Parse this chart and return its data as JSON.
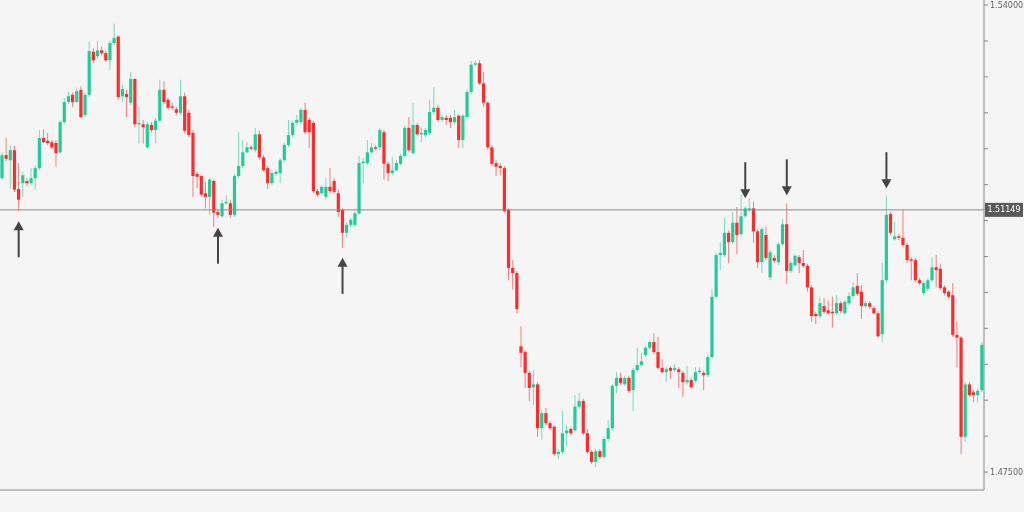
{
  "chart_data": {
    "type": "candlestick",
    "categories": [
      null,
      null,
      null,
      null,
      null,
      null,
      null,
      null,
      null,
      null,
      null,
      null,
      null,
      null,
      null,
      null,
      null,
      null,
      null,
      null,
      null,
      null,
      null,
      null,
      null,
      null,
      null,
      null,
      null,
      null,
      null,
      null,
      null,
      null,
      null,
      null,
      null,
      null,
      null,
      null,
      null,
      null,
      null,
      null,
      null,
      null,
      null,
      null,
      null,
      null,
      null,
      null,
      null,
      null,
      null,
      null,
      null,
      null,
      null,
      null,
      null,
      null,
      null,
      null,
      null,
      null,
      null,
      null,
      null,
      null,
      null,
      null,
      null,
      null,
      null,
      null,
      null,
      null,
      null,
      null,
      null,
      null,
      null,
      null,
      null,
      null,
      null,
      null,
      null,
      null,
      null,
      null,
      null,
      null,
      null,
      null,
      null,
      null,
      null,
      null,
      null,
      null,
      null,
      null,
      null,
      null,
      null,
      null,
      null,
      null,
      null,
      null,
      null,
      null,
      null,
      null,
      null,
      null,
      null,
      null,
      null,
      null,
      null,
      null,
      null,
      null,
      null,
      null,
      null,
      null,
      null,
      null,
      null,
      null,
      null,
      null,
      null,
      null,
      null,
      null,
      null,
      null,
      null,
      null,
      null,
      null,
      null,
      null,
      null,
      null,
      null,
      null,
      null,
      null,
      null,
      null,
      null,
      null,
      null,
      null,
      null,
      null,
      null,
      null,
      null,
      null,
      null,
      null,
      null,
      null,
      null,
      null,
      null,
      null,
      null,
      null,
      null,
      null,
      null,
      null,
      null,
      null,
      null,
      null,
      null,
      null,
      null,
      null,
      null,
      null,
      null,
      null,
      null,
      null,
      null,
      null,
      null,
      null,
      null,
      null,
      null,
      null,
      null,
      null,
      null,
      null,
      null,
      null,
      null,
      null,
      null,
      null,
      null,
      null,
      null,
      null,
      null,
      null,
      null,
      null,
      null,
      null,
      null,
      null,
      null,
      null,
      null,
      null,
      null,
      null,
      null,
      null,
      null,
      null,
      null,
      null,
      null
    ],
    "ohlc": [
      [
        1.5159,
        1.5195,
        1.5157,
        1.5191
      ],
      [
        1.5191,
        1.5215,
        1.5183,
        1.5186
      ],
      [
        1.5184,
        1.5205,
        1.5145,
        1.5198
      ],
      [
        1.5198,
        1.5204,
        1.514,
        1.5143
      ],
      [
        1.5144,
        1.518,
        1.5113,
        1.5129
      ],
      [
        1.5152,
        1.5168,
        1.5133,
        1.5163
      ],
      [
        1.5155,
        1.5159,
        1.5148,
        1.5152
      ],
      [
        1.5152,
        1.5173,
        1.5149,
        1.5159
      ],
      [
        1.5159,
        1.5177,
        1.5143,
        1.5173
      ],
      [
        1.5173,
        1.5226,
        1.517,
        1.5215
      ],
      [
        1.5215,
        1.5227,
        1.5208,
        1.5209
      ],
      [
        1.5211,
        1.5222,
        1.5205,
        1.5208
      ],
      [
        1.5209,
        1.5212,
        1.52,
        1.5202
      ],
      [
        1.5208,
        1.5212,
        1.5175,
        1.5194
      ],
      [
        1.5195,
        1.524,
        1.5193,
        1.5237
      ],
      [
        1.5237,
        1.5271,
        1.5234,
        1.5265
      ],
      [
        1.5265,
        1.5279,
        1.5262,
        1.5273
      ],
      [
        1.5275,
        1.5278,
        1.5258,
        1.5265
      ],
      [
        1.5265,
        1.5285,
        1.5264,
        1.528
      ],
      [
        1.5282,
        1.5287,
        1.5243,
        1.5244
      ],
      [
        1.5247,
        1.5278,
        1.5244,
        1.5275
      ],
      [
        1.5275,
        1.5349,
        1.5272,
        1.5336
      ],
      [
        1.5335,
        1.534,
        1.5319,
        1.5323
      ],
      [
        1.5329,
        1.535,
        1.5326,
        1.5337
      ],
      [
        1.5337,
        1.5342,
        1.533,
        1.5333
      ],
      [
        1.5333,
        1.5337,
        1.5321,
        1.5323
      ],
      [
        1.5323,
        1.5351,
        1.531,
        1.5347
      ],
      [
        1.5347,
        1.5374,
        1.5344,
        1.5354
      ],
      [
        1.5356,
        1.5358,
        1.5268,
        1.5272
      ],
      [
        1.5273,
        1.5289,
        1.5265,
        1.5283
      ],
      [
        1.5276,
        1.5282,
        1.5244,
        1.5272
      ],
      [
        1.5264,
        1.5307,
        1.5261,
        1.5297
      ],
      [
        1.5297,
        1.5298,
        1.523,
        1.5234
      ],
      [
        1.5234,
        1.5258,
        1.5207,
        1.5236
      ],
      [
        1.5234,
        1.524,
        1.5207,
        1.523
      ],
      [
        1.5202,
        1.5237,
        1.52,
        1.5234
      ],
      [
        1.5233,
        1.5237,
        1.5223,
        1.5226
      ],
      [
        1.5226,
        1.5243,
        1.5208,
        1.5239
      ],
      [
        1.5239,
        1.5296,
        1.5237,
        1.5282
      ],
      [
        1.5282,
        1.5294,
        1.5262,
        1.5265
      ],
      [
        1.5268,
        1.5271,
        1.5254,
        1.5257
      ],
      [
        1.5259,
        1.5264,
        1.5254,
        1.5257
      ],
      [
        1.5255,
        1.5258,
        1.5247,
        1.525
      ],
      [
        1.525,
        1.5296,
        1.5247,
        1.5273
      ],
      [
        1.5273,
        1.5278,
        1.5222,
        1.5225
      ],
      [
        1.525,
        1.5254,
        1.5216,
        1.5219
      ],
      [
        1.5222,
        1.5226,
        1.5133,
        1.5162
      ],
      [
        1.5165,
        1.5168,
        1.5145,
        1.5161
      ],
      [
        1.5162,
        1.5163,
        1.5133,
        1.5136
      ],
      [
        1.5138,
        1.5154,
        1.5117,
        1.5133
      ],
      [
        1.5133,
        1.5159,
        1.5108,
        1.5157
      ],
      [
        1.5155,
        1.5157,
        1.5091,
        1.5111
      ],
      [
        1.5112,
        1.5115,
        1.5104,
        1.5108
      ],
      [
        1.5106,
        1.5129,
        1.5104,
        1.5124
      ],
      [
        1.5124,
        1.5136,
        1.5122,
        1.5126
      ],
      [
        1.5124,
        1.5129,
        1.5104,
        1.5108
      ],
      [
        1.5108,
        1.5165,
        1.5105,
        1.5162
      ],
      [
        1.5162,
        1.5223,
        1.5159,
        1.5176
      ],
      [
        1.5176,
        1.5212,
        1.5173,
        1.5195
      ],
      [
        1.5195,
        1.5209,
        1.5193,
        1.5202
      ],
      [
        1.5202,
        1.5205,
        1.5198,
        1.52
      ],
      [
        1.5198,
        1.5229,
        1.5195,
        1.522
      ],
      [
        1.522,
        1.5225,
        1.5184,
        1.5188
      ],
      [
        1.5188,
        1.5191,
        1.5168,
        1.517
      ],
      [
        1.5173,
        1.5176,
        1.5144,
        1.5152
      ],
      [
        1.5152,
        1.517,
        1.5149,
        1.5166
      ],
      [
        1.5165,
        1.517,
        1.5162,
        1.5168
      ],
      [
        1.5166,
        1.5187,
        1.5152,
        1.5184
      ],
      [
        1.5184,
        1.5208,
        1.5181,
        1.5205
      ],
      [
        1.5205,
        1.524,
        1.5202,
        1.5219
      ],
      [
        1.5219,
        1.5239,
        1.5216,
        1.5236
      ],
      [
        1.5236,
        1.5247,
        1.5233,
        1.524
      ],
      [
        1.5237,
        1.5257,
        1.5234,
        1.5254
      ],
      [
        1.5254,
        1.5264,
        1.522,
        1.5223
      ],
      [
        1.524,
        1.5243,
        1.5201,
        1.5223
      ],
      [
        1.5236,
        1.5239,
        1.5138,
        1.5141
      ],
      [
        1.5141,
        1.5144,
        1.5133,
        1.5136
      ],
      [
        1.5138,
        1.5149,
        1.5136,
        1.5147
      ],
      [
        1.5133,
        1.5159,
        1.5129,
        1.5147
      ],
      [
        1.5147,
        1.5173,
        1.5138,
        1.5141
      ],
      [
        1.5155,
        1.5159,
        1.5137,
        1.514
      ],
      [
        1.5138,
        1.5143,
        1.5105,
        1.5112
      ],
      [
        1.5115,
        1.5117,
        1.5062,
        1.5083
      ],
      [
        1.5083,
        1.5098,
        1.5076,
        1.5094
      ],
      [
        1.5094,
        1.5104,
        1.5091,
        1.5101
      ],
      [
        1.5094,
        1.5113,
        1.5091,
        1.511
      ],
      [
        1.511,
        1.519,
        1.5108,
        1.518
      ],
      [
        1.518,
        1.5187,
        1.5152,
        1.5182
      ],
      [
        1.518,
        1.5212,
        1.5177,
        1.5195
      ],
      [
        1.5195,
        1.5208,
        1.5193,
        1.5202
      ],
      [
        1.5202,
        1.5205,
        1.5198,
        1.52
      ],
      [
        1.5202,
        1.5229,
        1.5198,
        1.5226
      ],
      [
        1.5223,
        1.5226,
        1.5157,
        1.5179
      ],
      [
        1.5179,
        1.5182,
        1.5155,
        1.5166
      ],
      [
        1.5166,
        1.5188,
        1.5163,
        1.517
      ],
      [
        1.517,
        1.5184,
        1.5168,
        1.518
      ],
      [
        1.5179,
        1.5193,
        1.5176,
        1.519
      ],
      [
        1.519,
        1.5232,
        1.5187,
        1.5229
      ],
      [
        1.5229,
        1.5244,
        1.5195,
        1.5198
      ],
      [
        1.5194,
        1.5264,
        1.5191,
        1.5233
      ],
      [
        1.5233,
        1.5236,
        1.5218,
        1.522
      ],
      [
        1.522,
        1.5229,
        1.5209,
        1.5222
      ],
      [
        1.5219,
        1.5229,
        1.5216,
        1.5226
      ],
      [
        1.5222,
        1.5268,
        1.5219,
        1.5251
      ],
      [
        1.5251,
        1.5286,
        1.5248,
        1.5257
      ],
      [
        1.5257,
        1.5261,
        1.5237,
        1.524
      ],
      [
        1.524,
        1.5247,
        1.5237,
        1.5244
      ],
      [
        1.5243,
        1.5247,
        1.5233,
        1.524
      ],
      [
        1.5243,
        1.5247,
        1.5229,
        1.5237
      ],
      [
        1.5237,
        1.5254,
        1.5234,
        1.5244
      ],
      [
        1.5246,
        1.5248,
        1.5201,
        1.5212
      ],
      [
        1.5212,
        1.5248,
        1.5201,
        1.5246
      ],
      [
        1.5244,
        1.5282,
        1.5241,
        1.5279
      ],
      [
        1.5279,
        1.5322,
        1.5276,
        1.5317
      ],
      [
        1.5317,
        1.5323,
        1.5314,
        1.5319
      ],
      [
        1.5319,
        1.5323,
        1.5289,
        1.5291
      ],
      [
        1.5291,
        1.5307,
        1.5258,
        1.5264
      ],
      [
        1.5264,
        1.5266,
        1.5198,
        1.5202
      ],
      [
        1.5202,
        1.5205,
        1.5176,
        1.5179
      ],
      [
        1.518,
        1.5184,
        1.5162,
        1.5175
      ],
      [
        1.5176,
        1.518,
        1.5163,
        1.5173
      ],
      [
        1.5173,
        1.5176,
        1.5111,
        1.5113
      ],
      [
        1.5115,
        1.5117,
        1.5017,
        1.5034
      ],
      [
        1.5034,
        1.5045,
        1.5004,
        1.5027
      ],
      [
        1.5027,
        1.503,
        1.4971,
        1.4977
      ],
      [
        1.4925,
        1.4953,
        1.4896,
        1.4916
      ],
      [
        1.4917,
        1.492,
        1.4867,
        1.4888
      ],
      [
        1.4888,
        1.4891,
        1.4849,
        1.4867
      ],
      [
        1.4868,
        1.4892,
        1.4843,
        1.4872
      ],
      [
        1.4872,
        1.4875,
        1.4799,
        1.4811
      ],
      [
        1.4811,
        1.4836,
        1.4795,
        1.4832
      ],
      [
        1.4832,
        1.4839,
        1.4815,
        1.4818
      ],
      [
        1.4818,
        1.4821,
        1.4808,
        1.4811
      ],
      [
        1.4813,
        1.4815,
        1.4772,
        1.4775
      ],
      [
        1.4775,
        1.4781,
        1.4768,
        1.4778
      ],
      [
        1.4778,
        1.4835,
        1.4775,
        1.4804
      ],
      [
        1.4804,
        1.4815,
        1.4786,
        1.4808
      ],
      [
        1.481,
        1.4813,
        1.4801,
        1.4804
      ],
      [
        1.4808,
        1.4857,
        1.4806,
        1.4841
      ],
      [
        1.4841,
        1.486,
        1.4838,
        1.4849
      ],
      [
        1.4849,
        1.4852,
        1.4801,
        1.4804
      ],
      [
        1.4804,
        1.481,
        1.4775,
        1.4778
      ],
      [
        1.4778,
        1.4781,
        1.4761,
        1.4764
      ],
      [
        1.4764,
        1.4782,
        1.4757,
        1.4779
      ],
      [
        1.4779,
        1.4782,
        1.4768,
        1.4771
      ],
      [
        1.4771,
        1.4799,
        1.4768,
        1.4796
      ],
      [
        1.4796,
        1.4822,
        1.4793,
        1.4811
      ],
      [
        1.4811,
        1.4872,
        1.4808,
        1.487
      ],
      [
        1.487,
        1.4889,
        1.486,
        1.4881
      ],
      [
        1.4881,
        1.4888,
        1.4871,
        1.4874
      ],
      [
        1.4872,
        1.4884,
        1.487,
        1.4881
      ],
      [
        1.4881,
        1.4884,
        1.486,
        1.4863
      ],
      [
        1.4864,
        1.4895,
        1.4835,
        1.4892
      ],
      [
        1.4892,
        1.4923,
        1.4889,
        1.4899
      ],
      [
        1.4899,
        1.4916,
        1.4896,
        1.4904
      ],
      [
        1.4913,
        1.4925,
        1.491,
        1.4923
      ],
      [
        1.4923,
        1.4934,
        1.492,
        1.4931
      ],
      [
        1.4931,
        1.4943,
        1.4914,
        1.4917
      ],
      [
        1.4917,
        1.4938,
        1.4892,
        1.4895
      ],
      [
        1.4895,
        1.4907,
        1.4886,
        1.4889
      ],
      [
        1.4889,
        1.4896,
        1.4875,
        1.4893
      ],
      [
        1.4895,
        1.4897,
        1.4879,
        1.4891
      ],
      [
        1.4892,
        1.49,
        1.4889,
        1.4895
      ],
      [
        1.4893,
        1.4896,
        1.4867,
        1.4889
      ],
      [
        1.4888,
        1.4891,
        1.4854,
        1.4875
      ],
      [
        1.4875,
        1.4898,
        1.4872,
        1.4878
      ],
      [
        1.4878,
        1.4881,
        1.4866,
        1.4868
      ],
      [
        1.4877,
        1.4896,
        1.4874,
        1.4889
      ],
      [
        1.4889,
        1.4896,
        1.4886,
        1.4891
      ],
      [
        1.4888,
        1.4891,
        1.4864,
        1.4885
      ],
      [
        1.4885,
        1.4913,
        1.4882,
        1.491
      ],
      [
        1.491,
        1.5005,
        1.4907,
        1.4994
      ],
      [
        1.4994,
        1.5055,
        1.4991,
        1.5052
      ],
      [
        1.5052,
        1.507,
        1.5031,
        1.5055
      ],
      [
        1.5052,
        1.5104,
        1.5049,
        1.5083
      ],
      [
        1.5083,
        1.5086,
        1.5041,
        1.507
      ],
      [
        1.507,
        1.5112,
        1.5067,
        1.5097
      ],
      [
        1.5097,
        1.5119,
        1.5053,
        1.508
      ],
      [
        1.5081,
        1.5136,
        1.5078,
        1.5106
      ],
      [
        1.5106,
        1.512,
        1.5104,
        1.5117
      ],
      [
        1.5115,
        1.5131,
        1.5112,
        1.5117
      ],
      [
        1.5117,
        1.5126,
        1.5069,
        1.5085
      ],
      [
        1.5085,
        1.5088,
        1.5034,
        1.5042
      ],
      [
        1.5042,
        1.5091,
        1.5027,
        1.5088
      ],
      [
        1.508,
        1.5092,
        1.5045,
        1.5048
      ],
      [
        1.5021,
        1.5059,
        1.5017,
        1.5056
      ],
      [
        1.5048,
        1.5052,
        1.5041,
        1.5044
      ],
      [
        1.5042,
        1.507,
        1.5038,
        1.5067
      ],
      [
        1.5067,
        1.5102,
        1.5065,
        1.5095
      ],
      [
        1.5095,
        1.5124,
        1.5012,
        1.503
      ],
      [
        1.503,
        1.5044,
        1.5027,
        1.5041
      ],
      [
        1.5038,
        1.5053,
        1.5035,
        1.5051
      ],
      [
        1.5049,
        1.5052,
        1.5027,
        1.5041
      ],
      [
        1.5041,
        1.5059,
        1.5034,
        1.5037
      ],
      [
        1.5037,
        1.504,
        1.5001,
        1.5007
      ],
      [
        1.5007,
        1.501,
        1.4959,
        1.4967
      ],
      [
        1.497,
        1.4973,
        1.4956,
        1.4967
      ],
      [
        1.4967,
        1.4994,
        1.4964,
        1.4985
      ],
      [
        1.4981,
        1.4992,
        1.497,
        1.4973
      ],
      [
        1.4975,
        1.4989,
        1.4969,
        1.4971
      ],
      [
        1.4973,
        1.4994,
        1.4951,
        1.4971
      ],
      [
        1.4971,
        1.4996,
        1.4969,
        1.4985
      ],
      [
        1.4985,
        1.4988,
        1.4971,
        1.4974
      ],
      [
        1.4971,
        1.4989,
        1.4969,
        1.4987
      ],
      [
        1.4985,
        1.5,
        1.4982,
        1.4995
      ],
      [
        1.4995,
        1.5014,
        1.4992,
        1.5007
      ],
      [
        1.5009,
        1.5027,
        1.4995,
        1.4998
      ],
      [
        1.5001,
        1.501,
        1.4963,
        1.4981
      ],
      [
        1.4981,
        1.4988,
        1.4978,
        1.4985
      ],
      [
        1.4985,
        1.4988,
        1.4977,
        1.498
      ],
      [
        1.4978,
        1.4981,
        1.4969,
        1.4971
      ],
      [
        1.4971,
        1.4974,
        1.4937,
        1.4939
      ],
      [
        1.4942,
        1.5041,
        1.4931,
        1.5017
      ],
      [
        1.5017,
        1.5134,
        1.5014,
        1.5108
      ],
      [
        1.5109,
        1.5112,
        1.508,
        1.5083
      ],
      [
        1.5074,
        1.5098,
        1.5072,
        1.5078
      ],
      [
        1.5078,
        1.5081,
        1.5073,
        1.5076
      ],
      [
        1.5076,
        1.5115,
        1.5063,
        1.5066
      ],
      [
        1.5066,
        1.5069,
        1.5041,
        1.5045
      ],
      [
        1.5046,
        1.5049,
        1.5017,
        1.5044
      ],
      [
        1.5045,
        1.5048,
        1.5014,
        1.5017
      ],
      [
        1.5017,
        1.502,
        1.501,
        1.5013
      ],
      [
        1.4999,
        1.5016,
        1.4996,
        1.5013
      ],
      [
        1.5005,
        1.502,
        1.5002,
        1.5017
      ],
      [
        1.5017,
        1.5049,
        1.5014,
        1.5035
      ],
      [
        1.5035,
        1.5052,
        1.5007,
        1.5031
      ],
      [
        1.5033,
        1.504,
        1.5003,
        1.5006
      ],
      [
        1.5007,
        1.501,
        1.4996,
        1.4999
      ],
      [
        1.5001,
        1.5003,
        1.4991,
        1.4994
      ],
      [
        1.4996,
        1.5013,
        1.4938,
        1.4941
      ],
      [
        1.4941,
        1.4959,
        1.4896,
        1.4937
      ],
      [
        1.4937,
        1.4939,
        1.4775,
        1.4799
      ],
      [
        1.4799,
        1.4875,
        1.4792,
        1.4872
      ],
      [
        1.4872,
        1.4875,
        1.4854,
        1.4857
      ],
      [
        1.4861,
        1.4864,
        1.4847,
        1.4857
      ],
      [
        1.4857,
        1.4866,
        1.4847,
        1.4863
      ],
      [
        1.4864,
        1.4931,
        1.4861,
        1.4927
      ]
    ],
    "colors": [
      "#22cc99",
      "#ff2a2a",
      "#22cc99",
      "#ff2a2a",
      "#ff2a2a",
      "#22cc99",
      "#ff2a2a",
      "#22cc99",
      "#22cc99",
      "#22cc99",
      "#ff2a2a",
      "#ff2a2a",
      "#ff2a2a",
      "#ff2a2a",
      "#22cc99",
      "#22cc99",
      "#22cc99",
      "#ff2a2a",
      "#22cc99",
      "#ff2a2a",
      "#22cc99",
      "#22cc99",
      "#ff2a2a",
      "#22cc99",
      "#ff2a2a",
      "#ff2a2a",
      "#22cc99",
      "#22cc99",
      "#ff2a2a",
      "#22cc99",
      "#ff2a2a",
      "#22cc99",
      "#ff2a2a",
      "#22cc99",
      "#ff2a2a",
      "#22cc99",
      "#ff2a2a",
      "#22cc99",
      "#22cc99",
      "#ff2a2a",
      "#ff2a2a",
      "#ff2a2a",
      "#ff2a2a",
      "#22cc99",
      "#ff2a2a",
      "#ff2a2a",
      "#ff2a2a",
      "#ff2a2a",
      "#ff2a2a",
      "#ff2a2a",
      "#22cc99",
      "#ff2a2a",
      "#ff2a2a",
      "#22cc99",
      "#22cc99",
      "#ff2a2a",
      "#22cc99",
      "#22cc99",
      "#22cc99",
      "#22cc99",
      "#ff2a2a",
      "#22cc99",
      "#ff2a2a",
      "#ff2a2a",
      "#ff2a2a",
      "#22cc99",
      "#22cc99",
      "#22cc99",
      "#22cc99",
      "#22cc99",
      "#22cc99",
      "#22cc99",
      "#22cc99",
      "#ff2a2a",
      "#ff2a2a",
      "#ff2a2a",
      "#ff2a2a",
      "#22cc99",
      "#22cc99",
      "#ff2a2a",
      "#ff2a2a",
      "#ff2a2a",
      "#ff2a2a",
      "#22cc99",
      "#22cc99",
      "#22cc99",
      "#22cc99",
      "#22cc99",
      "#22cc99",
      "#22cc99",
      "#ff2a2a",
      "#22cc99",
      "#ff2a2a",
      "#ff2a2a",
      "#22cc99",
      "#22cc99",
      "#22cc99",
      "#22cc99",
      "#ff2a2a",
      "#22cc99",
      "#ff2a2a",
      "#22cc99",
      "#22cc99",
      "#22cc99",
      "#22cc99",
      "#ff2a2a",
      "#22cc99",
      "#ff2a2a",
      "#ff2a2a",
      "#22cc99",
      "#ff2a2a",
      "#22cc99",
      "#22cc99",
      "#22cc99",
      "#22cc99",
      "#ff2a2a",
      "#ff2a2a",
      "#ff2a2a",
      "#ff2a2a",
      "#ff2a2a",
      "#ff2a2a",
      "#ff2a2a",
      "#ff2a2a",
      "#ff2a2a",
      "#ff2a2a",
      "#ff2a2a",
      "#ff2a2a",
      "#ff2a2a",
      "#22cc99",
      "#ff2a2a",
      "#22cc99",
      "#ff2a2a",
      "#ff2a2a",
      "#ff2a2a",
      "#22cc99",
      "#22cc99",
      "#22cc99",
      "#ff2a2a",
      "#22cc99",
      "#22cc99",
      "#ff2a2a",
      "#ff2a2a",
      "#ff2a2a",
      "#22cc99",
      "#ff2a2a",
      "#22cc99",
      "#22cc99",
      "#22cc99",
      "#22cc99",
      "#ff2a2a",
      "#22cc99",
      "#ff2a2a",
      "#22cc99",
      "#22cc99",
      "#22cc99",
      "#22cc99",
      "#22cc99",
      "#ff2a2a",
      "#ff2a2a",
      "#ff2a2a",
      "#22cc99",
      "#ff2a2a",
      "#22cc99",
      "#ff2a2a",
      "#ff2a2a",
      "#22cc99",
      "#ff2a2a",
      "#22cc99",
      "#22cc99",
      "#ff2a2a",
      "#22cc99",
      "#22cc99",
      "#22cc99",
      "#22cc99",
      "#22cc99",
      "#ff2a2a",
      "#22cc99",
      "#ff2a2a",
      "#22cc99",
      "#22cc99",
      "#22cc99",
      "#ff2a2a",
      "#ff2a2a",
      "#22cc99",
      "#ff2a2a",
      "#22cc99",
      "#ff2a2a",
      "#22cc99",
      "#22cc99",
      "#ff2a2a",
      "#22cc99",
      "#22cc99",
      "#ff2a2a",
      "#ff2a2a",
      "#ff2a2a",
      "#ff2a2a",
      "#ff2a2a",
      "#22cc99",
      "#ff2a2a",
      "#ff2a2a",
      "#ff2a2a",
      "#22cc99",
      "#ff2a2a",
      "#22cc99",
      "#22cc99",
      "#22cc99",
      "#ff2a2a",
      "#ff2a2a",
      "#22cc99",
      "#ff2a2a",
      "#ff2a2a",
      "#ff2a2a",
      "#22cc99",
      "#22cc99",
      "#ff2a2a",
      "#22cc99",
      "#ff2a2a",
      "#ff2a2a",
      "#ff2a2a",
      "#ff2a2a",
      "#ff2a2a",
      "#ff2a2a",
      "#22cc99",
      "#22cc99",
      "#22cc99",
      "#ff2a2a",
      "#ff2a2a",
      "#ff2a2a",
      "#ff2a2a",
      "#ff2a2a",
      "#ff2a2a",
      "#ff2a2a",
      "#22cc99",
      "#ff2a2a",
      "#ff2a2a",
      "#22cc99",
      "#22cc99"
    ],
    "ylim": [
      1.4725,
      1.5407
    ],
    "yticks": [
      {
        "value": 1.475,
        "label": "1.47500"
      },
      {
        "value": 1.48,
        "label": null
      },
      {
        "value": 1.485,
        "label": null
      },
      {
        "value": 1.49,
        "label": null
      },
      {
        "value": 1.495,
        "label": null
      },
      {
        "value": 1.5,
        "label": null
      },
      {
        "value": 1.505,
        "label": null
      },
      {
        "value": 1.51,
        "label": null
      },
      {
        "value": 1.515,
        "label": null
      },
      {
        "value": 1.52,
        "label": null
      },
      {
        "value": 1.525,
        "label": null
      },
      {
        "value": 1.53,
        "label": null
      },
      {
        "value": 1.535,
        "label": null
      },
      {
        "value": 1.54,
        "label": "1.54000"
      }
    ],
    "ref_lines": [
      {
        "axis": "y",
        "value": 1.51149,
        "label": "1.51149",
        "color": "#8a8a8a"
      }
    ],
    "tick_labels": "y"
  }
}
